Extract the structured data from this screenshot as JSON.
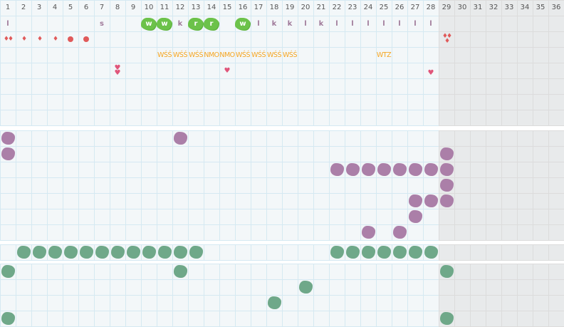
{
  "columns": [
    "1",
    "2",
    "3",
    "4",
    "5",
    "6",
    "7",
    "8",
    "9",
    "10",
    "11",
    "12",
    "13",
    "14",
    "15",
    "16",
    "17",
    "18",
    "19",
    "20",
    "21",
    "22",
    "23",
    "24",
    "25",
    "26",
    "27",
    "28",
    "29",
    "30",
    "31",
    "32",
    "33",
    "34",
    "35",
    "36"
  ],
  "shaded_from_column": 29,
  "colors": {
    "letter": "#a07a9a",
    "green_blob": "#6cc24a",
    "drop": "#e05a5a",
    "orange": "#f5a623",
    "heart": "#e0557a",
    "purple_blob": "#ab7fa8",
    "teal_blob": "#6fa889"
  },
  "sections": [
    {
      "name": "symbols-section",
      "rows": [
        {
          "items": [
            {
              "col": 1,
              "type": "letter",
              "text": "l"
            },
            {
              "col": 7,
              "type": "letter",
              "text": "s"
            },
            {
              "col": 10,
              "type": "gblob",
              "text": "w"
            },
            {
              "col": 11,
              "type": "gblob",
              "text": "w"
            },
            {
              "col": 12,
              "type": "letter",
              "text": "k"
            },
            {
              "col": 13,
              "type": "gblob",
              "text": "r"
            },
            {
              "col": 14,
              "type": "gblob",
              "text": "r"
            },
            {
              "col": 16,
              "type": "gblob",
              "text": "w"
            },
            {
              "col": 17,
              "type": "letter",
              "text": "l"
            },
            {
              "col": 18,
              "type": "letter",
              "text": "k"
            },
            {
              "col": 19,
              "type": "letter",
              "text": "k"
            },
            {
              "col": 20,
              "type": "letter",
              "text": "l"
            },
            {
              "col": 21,
              "type": "letter",
              "text": "k"
            },
            {
              "col": 22,
              "type": "letter",
              "text": "l"
            },
            {
              "col": 23,
              "type": "letter",
              "text": "l"
            },
            {
              "col": 24,
              "type": "letter",
              "text": "l"
            },
            {
              "col": 25,
              "type": "letter",
              "text": "l"
            },
            {
              "col": 26,
              "type": "letter",
              "text": "l"
            },
            {
              "col": 27,
              "type": "letter",
              "text": "l"
            },
            {
              "col": 28,
              "type": "letter",
              "text": "l"
            }
          ]
        },
        {
          "items": [
            {
              "col": 1,
              "type": "drop",
              "text": "♦♦"
            },
            {
              "col": 2,
              "type": "drop",
              "text": "♦"
            },
            {
              "col": 3,
              "type": "drop",
              "text": "♦"
            },
            {
              "col": 4,
              "type": "drop",
              "text": "♦"
            },
            {
              "col": 5,
              "type": "circ",
              "text": ""
            },
            {
              "col": 6,
              "type": "circ",
              "text": ""
            },
            {
              "col": 29,
              "type": "drop",
              "text": "♦♦\n♦"
            }
          ]
        },
        {
          "items": [
            {
              "col": 11,
              "type": "orange",
              "text": "WŚŚ"
            },
            {
              "col": 12,
              "type": "orange",
              "text": "WŚŚ"
            },
            {
              "col": 13,
              "type": "orange",
              "text": "WŚŚ"
            },
            {
              "col": 14,
              "type": "orange",
              "text": "NMO"
            },
            {
              "col": 15,
              "type": "orange",
              "text": "NMO"
            },
            {
              "col": 16,
              "type": "orange",
              "text": "WŚŚ"
            },
            {
              "col": 17,
              "type": "orange",
              "text": "WŚŚ"
            },
            {
              "col": 18,
              "type": "orange",
              "text": "WŚŚ"
            },
            {
              "col": 19,
              "type": "orange",
              "text": "WŚŚ"
            },
            {
              "col": 25,
              "type": "orange",
              "text": "WTZ"
            }
          ]
        },
        {
          "items": [
            {
              "col": 8,
              "type": "heart",
              "text": "♥\n♥"
            },
            {
              "col": 15,
              "type": "heart",
              "text": "♥"
            },
            {
              "col": 28,
              "type": "heart",
              "text": "\n♥"
            }
          ]
        },
        {
          "items": []
        },
        {
          "items": []
        },
        {
          "items": []
        }
      ]
    },
    {
      "name": "purple-section",
      "rows": [
        {
          "items": [
            {
              "col": 1,
              "type": "pblob"
            },
            {
              "col": 12,
              "type": "pblob"
            }
          ]
        },
        {
          "items": [
            {
              "col": 1,
              "type": "pblob"
            },
            {
              "col": 29,
              "type": "pblob"
            }
          ]
        },
        {
          "items": [
            {
              "col": 22,
              "type": "pblob"
            },
            {
              "col": 23,
              "type": "pblob"
            },
            {
              "col": 24,
              "type": "pblob"
            },
            {
              "col": 25,
              "type": "pblob"
            },
            {
              "col": 26,
              "type": "pblob"
            },
            {
              "col": 27,
              "type": "pblob"
            },
            {
              "col": 28,
              "type": "pblob"
            },
            {
              "col": 29,
              "type": "pblob"
            }
          ]
        },
        {
          "items": [
            {
              "col": 29,
              "type": "pblob"
            }
          ]
        },
        {
          "items": [
            {
              "col": 27,
              "type": "pblob"
            },
            {
              "col": 28,
              "type": "pblob"
            },
            {
              "col": 29,
              "type": "pblob"
            }
          ]
        },
        {
          "items": [
            {
              "col": 27,
              "type": "pblob"
            }
          ]
        },
        {
          "items": [
            {
              "col": 24,
              "type": "pblob"
            },
            {
              "col": 26,
              "type": "pblob"
            }
          ]
        }
      ]
    },
    {
      "name": "teal-band-section",
      "rows": [
        {
          "items": [
            {
              "col": 2,
              "type": "tblob"
            },
            {
              "col": 3,
              "type": "tblob"
            },
            {
              "col": 4,
              "type": "tblob"
            },
            {
              "col": 5,
              "type": "tblob"
            },
            {
              "col": 6,
              "type": "tblob"
            },
            {
              "col": 7,
              "type": "tblob"
            },
            {
              "col": 8,
              "type": "tblob"
            },
            {
              "col": 9,
              "type": "tblob"
            },
            {
              "col": 10,
              "type": "tblob"
            },
            {
              "col": 11,
              "type": "tblob"
            },
            {
              "col": 12,
              "type": "tblob"
            },
            {
              "col": 13,
              "type": "tblob"
            },
            {
              "col": 22,
              "type": "tblob"
            },
            {
              "col": 23,
              "type": "tblob"
            },
            {
              "col": 24,
              "type": "tblob"
            },
            {
              "col": 25,
              "type": "tblob"
            },
            {
              "col": 26,
              "type": "tblob"
            },
            {
              "col": 27,
              "type": "tblob"
            },
            {
              "col": 28,
              "type": "tblob"
            }
          ]
        }
      ]
    },
    {
      "name": "teal-section",
      "rows": [
        {
          "items": [
            {
              "col": 1,
              "type": "tblob"
            },
            {
              "col": 12,
              "type": "tblob"
            },
            {
              "col": 29,
              "type": "tblob"
            }
          ]
        },
        {
          "items": [
            {
              "col": 20,
              "type": "tblob"
            }
          ]
        },
        {
          "items": [
            {
              "col": 18,
              "type": "tblob"
            }
          ]
        },
        {
          "items": [
            {
              "col": 1,
              "type": "tblob"
            },
            {
              "col": 29,
              "type": "tblob"
            }
          ]
        }
      ]
    }
  ]
}
